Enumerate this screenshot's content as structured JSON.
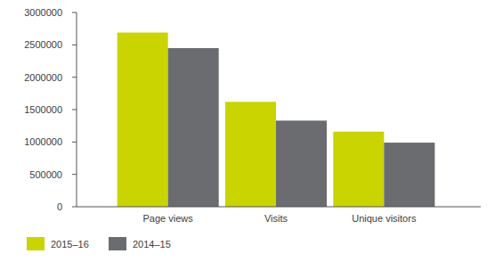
{
  "chart_data": {
    "type": "bar",
    "categories": [
      "Page views",
      "Visits",
      "Unique visitors"
    ],
    "series": [
      {
        "name": "2015–16",
        "color": "#c9d400",
        "values": [
          2690000,
          1620000,
          1160000
        ]
      },
      {
        "name": "2014–15",
        "color": "#6b6c6f",
        "values": [
          2450000,
          1330000,
          990000
        ]
      }
    ],
    "ylim": [
      0,
      3000000
    ],
    "yticks": [
      0,
      500000,
      1000000,
      1500000,
      2000000,
      2500000,
      3000000
    ],
    "grid": false,
    "legend": "bottom-left"
  }
}
